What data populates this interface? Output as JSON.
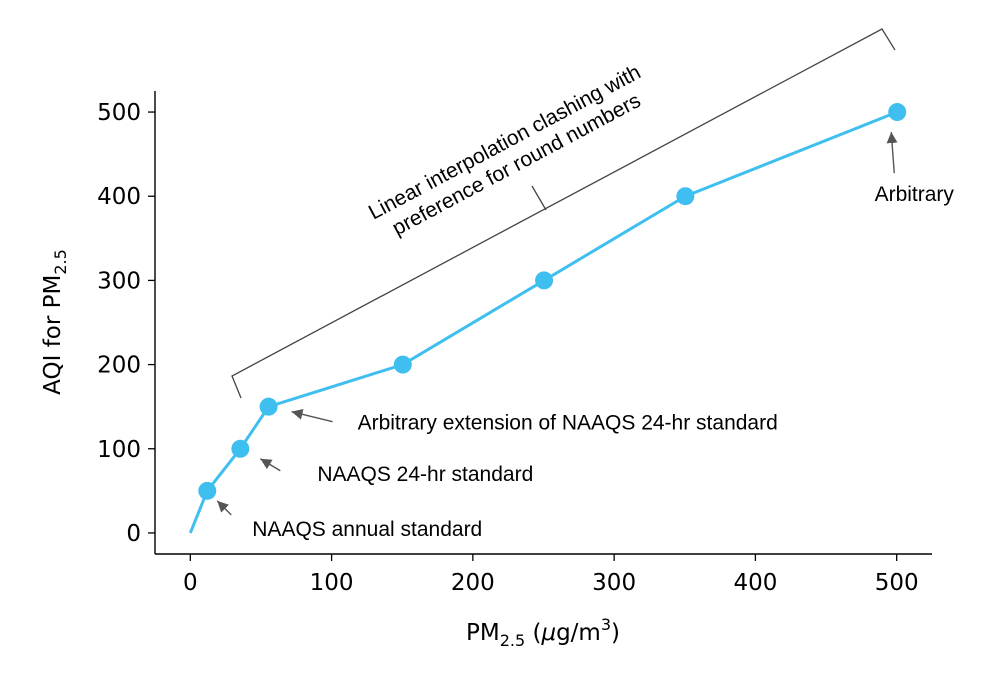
{
  "chart_data": {
    "type": "line",
    "title": "",
    "xlabel": {
      "main": "PM",
      "sub": "2.5",
      "unit_prefix": " (",
      "mu": "μ",
      "unit_rest": "g/m",
      "sup": "3",
      "close": ")"
    },
    "ylabel": {
      "main": "AQI for PM",
      "sub": "2.5"
    },
    "xlim": [
      -25,
      525
    ],
    "ylim": [
      -25,
      525
    ],
    "xticks": [
      0,
      100,
      200,
      300,
      400,
      500
    ],
    "yticks": [
      0,
      100,
      200,
      300,
      400,
      500
    ],
    "grid": false,
    "series": [
      {
        "color": "#3fbfef",
        "line": {
          "x": [
            0,
            12,
            35.4,
            55.4,
            150.4,
            250.4,
            350.4,
            500.4
          ],
          "y": [
            0,
            50,
            100,
            150,
            200,
            300,
            400,
            500
          ]
        },
        "markers": {
          "x": [
            12,
            35.4,
            55.4,
            150.4,
            250.4,
            350.4,
            500.4
          ],
          "y": [
            50,
            100,
            150,
            200,
            300,
            400,
            500
          ]
        }
      }
    ],
    "annotations": [
      {
        "id": "naaqs-annual",
        "text": "NAAQS annual standard",
        "point": [
          12,
          50
        ]
      },
      {
        "id": "naaqs-24hr",
        "text": "NAAQS 24-hr standard",
        "point": [
          35.4,
          100
        ]
      },
      {
        "id": "arbitrary-extension",
        "text": "Arbitrary extension of NAAQS 24-hr standard",
        "point": [
          55.4,
          150
        ]
      },
      {
        "id": "arbitrary-top",
        "text": "Arbitrary",
        "point": [
          500.4,
          500
        ]
      }
    ],
    "bracket": {
      "text_line1": "Linear interpolation clashing with",
      "text_line2": "preference for round numbers"
    }
  }
}
